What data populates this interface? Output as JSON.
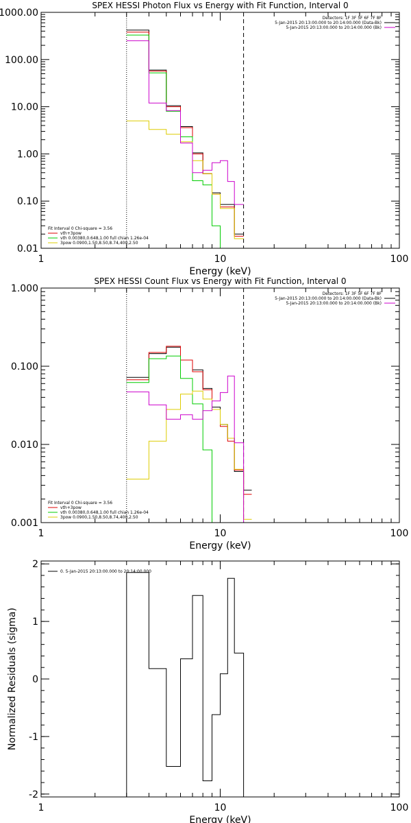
{
  "chart_data": [
    {
      "type": "line",
      "scale": {
        "x": "log",
        "y": "log"
      },
      "title": "SPEX HESSI Photon Flux vs Energy with Fit Function, Interval 0",
      "xlabel": "Energy  (keV)",
      "ylabel": "",
      "xlim": [
        1,
        100
      ],
      "ylim": [
        0.01,
        1000
      ],
      "xticks": [
        {
          "v": 1,
          "label": "1"
        },
        {
          "v": 10,
          "label": "10"
        },
        {
          "v": 100,
          "label": "100"
        }
      ],
      "yticks": [
        {
          "v": 1000,
          "label": "1000.00"
        },
        {
          "v": 100,
          "label": "100.00"
        },
        {
          "v": 10,
          "label": "10.00"
        },
        {
          "v": 1,
          "label": "1.00"
        },
        {
          "v": 0.1,
          "label": "0.10"
        },
        {
          "v": 0.01,
          "label": "0.01"
        }
      ],
      "vlines": [
        {
          "x": 3.0,
          "style": "dotted"
        },
        {
          "x": 13.5,
          "style": "dashed"
        }
      ],
      "legend_top": {
        "placement": "top-right",
        "lines": [
          {
            "text": "Detectors: 1F 3F 5F 6F 7F 8F",
            "color": ""
          },
          {
            "text": "5-Jan-2015 20:13:00.000 to 20:14:00.000 (Data-Bk)",
            "color": "#000000"
          },
          {
            "text": "5-Jan-2015 20:13:00.000 to 20:14:00.000 (Bk)",
            "color": "#cc00cc"
          }
        ]
      },
      "legend_bottom": {
        "placement": "bottom-left",
        "lines": [
          {
            "text": "Fit Interval  0   Chi-square = 3.56",
            "color": ""
          },
          {
            "text": "vth+3pow",
            "color": "#dd0000"
          },
          {
            "text": "vth 0.00380,0.648,1.00  full chian 1.26e-04",
            "color": "#00cc00"
          },
          {
            "text": "3pow 0.0900,1.50,8.50,8.74,400,2.50",
            "color": "#ddcc00"
          }
        ]
      },
      "edges": [
        3.0,
        4.0,
        5.0,
        6.0,
        7.0,
        8.0,
        9.0,
        10.0,
        11.0,
        12.0,
        13.5
      ],
      "series": [
        {
          "color": "#000000",
          "values": [
            420,
            60,
            10.5,
            3.8,
            1.05,
            0.38,
            0.15,
            0.085,
            0.085,
            0.02
          ]
        },
        {
          "color": "#dd0000",
          "values": [
            380,
            57,
            10,
            3.6,
            1.0,
            0.38,
            0.14,
            0.075,
            0.075,
            0.018
          ]
        },
        {
          "color": "#00cc00",
          "values": [
            330,
            52,
            8.0,
            2.3,
            0.27,
            0.22,
            0.03,
            0.0001,
            0.0001,
            0.0001
          ]
        },
        {
          "color": "#ddcc00",
          "values": [
            5,
            3.3,
            2.6,
            1.8,
            0.72,
            0.38,
            0.14,
            0.07,
            0.07,
            0.016
          ]
        },
        {
          "color": "#cc00cc",
          "values": [
            250,
            12,
            8.3,
            1.7,
            0.4,
            0.45,
            0.65,
            0.72,
            0.26,
            0.085
          ]
        }
      ]
    },
    {
      "type": "line",
      "scale": {
        "x": "log",
        "y": "log"
      },
      "title": "SPEX HESSI Count Flux vs Energy with Fit Function, Interval 0",
      "xlabel": "Energy  (keV)",
      "ylabel": "",
      "xlim": [
        1,
        100
      ],
      "ylim": [
        0.001,
        1
      ],
      "xticks": [
        {
          "v": 1,
          "label": "1"
        },
        {
          "v": 10,
          "label": "10"
        },
        {
          "v": 100,
          "label": "100"
        }
      ],
      "yticks": [
        {
          "v": 1,
          "label": "1.000"
        },
        {
          "v": 0.1,
          "label": "0.100"
        },
        {
          "v": 0.01,
          "label": "0.010"
        },
        {
          "v": 0.001,
          "label": "0.001"
        }
      ],
      "vlines": [
        {
          "x": 3.0,
          "style": "dotted"
        },
        {
          "x": 13.5,
          "style": "dashed"
        }
      ],
      "legend_top": {
        "placement": "top-right",
        "lines": [
          {
            "text": "Detectors: 1F 3F 5F 6F 7F 8F",
            "color": ""
          },
          {
            "text": "5-Jan-2015 20:13:00.000 to 20:14:00.000 (Data-Bk)",
            "color": "#000000"
          },
          {
            "text": "5-Jan-2015 20:13:00.000 to 20:14:00.000 (Bk)",
            "color": "#cc00cc"
          }
        ]
      },
      "legend_bottom": {
        "placement": "bottom-left",
        "lines": [
          {
            "text": "Fit Interval  0   Chi-square = 3.56",
            "color": ""
          },
          {
            "text": "vth+3pow",
            "color": "#dd0000"
          },
          {
            "text": "vth 0.00380,0.648,1.00  full chian 1.26e-04",
            "color": "#00cc00"
          },
          {
            "text": "3pow 0.0900,1.50,8.50,8.74,400,2.50",
            "color": "#ddcc00"
          }
        ]
      },
      "edges": [
        3.0,
        4.0,
        5.0,
        6.0,
        7.0,
        8.0,
        9.0,
        10.0,
        11.0,
        12.0,
        13.5,
        15.0
      ],
      "series": [
        {
          "color": "#000000",
          "values": [
            0.072,
            0.145,
            0.175,
            0.12,
            0.09,
            0.052,
            0.03,
            0.018,
            0.012,
            0.0045,
            0.0026
          ]
        },
        {
          "color": "#dd0000",
          "values": [
            0.067,
            0.15,
            0.18,
            0.12,
            0.085,
            0.05,
            0.028,
            0.017,
            0.011,
            0.0047,
            0.0023
          ]
        },
        {
          "color": "#00cc00",
          "values": [
            0.062,
            0.125,
            0.135,
            0.07,
            0.033,
            0.0085,
            0.0008,
            0.0001,
            0.0001,
            0.0001,
            0.0001
          ]
        },
        {
          "color": "#ddcc00",
          "values": [
            0.0036,
            0.011,
            0.028,
            0.044,
            0.048,
            0.038,
            0.028,
            0.018,
            0.012,
            0.0048,
            0.0011
          ]
        },
        {
          "color": "#cc00cc",
          "values": [
            0.047,
            0.032,
            0.021,
            0.024,
            0.021,
            0.027,
            0.036,
            0.046,
            0.075,
            0.0105,
            0.0001
          ]
        }
      ]
    },
    {
      "type": "line",
      "scale": {
        "x": "log",
        "y": "linear"
      },
      "title": "",
      "xlabel": "Energy  (keV)",
      "ylabel": "Normalized Residuals (sigma)",
      "xlim": [
        1,
        100
      ],
      "ylim": [
        -2.05,
        2.05
      ],
      "xticks": [
        {
          "v": 1,
          "label": "1"
        },
        {
          "v": 10,
          "label": "10"
        },
        {
          "v": 100,
          "label": "100"
        }
      ],
      "yticks": [
        {
          "v": 2,
          "label": "2"
        },
        {
          "v": 1,
          "label": "1"
        },
        {
          "v": 0,
          "label": "0"
        },
        {
          "v": -1,
          "label": "-1"
        },
        {
          "v": -2,
          "label": "-2"
        }
      ],
      "vlines": [],
      "legend_top": {
        "placement": "top-left",
        "lines": [
          {
            "text": "0. 5-Jan-2015 20:13:00.000 to 20:14:00.000",
            "color": "#000000"
          }
        ]
      },
      "legend_bottom": {
        "placement": "",
        "lines": []
      },
      "edges": [
        3.0,
        4.0,
        5.0,
        6.0,
        7.0,
        8.0,
        9.0,
        10.0,
        11.0,
        12.0,
        13.5
      ],
      "series": [
        {
          "color": "#000000",
          "values": [
            1.85,
            0.18,
            -1.52,
            0.35,
            1.45,
            -1.77,
            -0.62,
            0.09,
            1.75,
            0.45
          ],
          "drop_to_floor": true
        }
      ]
    }
  ]
}
